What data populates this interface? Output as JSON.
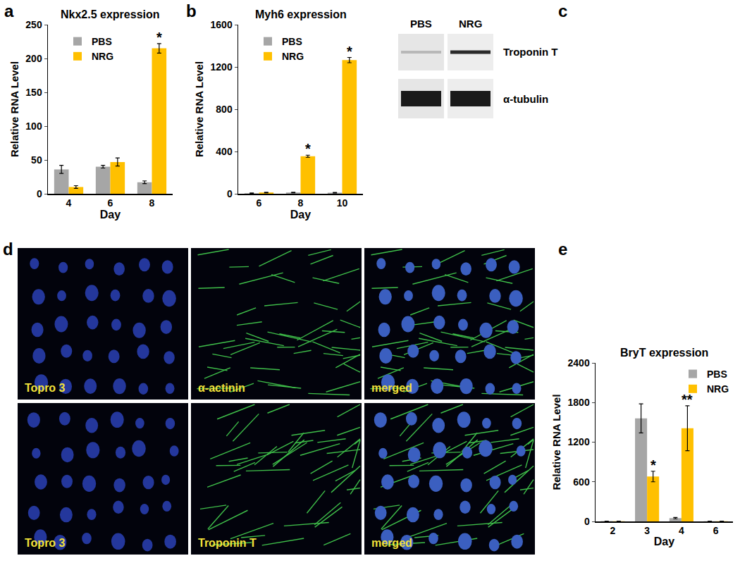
{
  "chart_data": [
    {
      "panel": "a",
      "type": "bar",
      "title": "Nkx2.5 expression",
      "x_label": "Day",
      "y_label": "Relative RNA Level",
      "categories": [
        "4",
        "6",
        "8"
      ],
      "series": [
        {
          "name": "PBS",
          "color": "#a6a6a6",
          "values": [
            36,
            40,
            17
          ],
          "errors": [
            6,
            2,
            2
          ]
        },
        {
          "name": "NRG",
          "color": "#ffc000",
          "values": [
            10,
            47,
            215
          ],
          "errors": [
            2,
            6,
            7
          ]
        }
      ],
      "annotations": [
        {
          "category": "8",
          "series": "NRG",
          "text": "*"
        }
      ],
      "ylim": [
        0,
        250
      ],
      "yticks": [
        0,
        50,
        100,
        150,
        200,
        250
      ],
      "grid": false,
      "legend": "upper left"
    },
    {
      "panel": "b",
      "type": "bar",
      "title": "Myh6 expression",
      "x_label": "Day",
      "y_label": "Relative RNA Level",
      "categories": [
        "6",
        "8",
        "10"
      ],
      "series": [
        {
          "name": "PBS",
          "color": "#a6a6a6",
          "values": [
            5,
            12,
            10
          ],
          "errors": [
            2,
            3,
            3
          ]
        },
        {
          "name": "NRG",
          "color": "#ffc000",
          "values": [
            12,
            355,
            1265
          ],
          "errors": [
            3,
            10,
            25
          ]
        }
      ],
      "annotations": [
        {
          "category": "8",
          "series": "NRG",
          "text": "*"
        },
        {
          "category": "10",
          "series": "NRG",
          "text": "*"
        }
      ],
      "ylim": [
        0,
        1600
      ],
      "yticks": [
        0,
        400,
        800,
        1200,
        1600
      ],
      "grid": false,
      "legend": "upper left"
    },
    {
      "panel": "e",
      "type": "bar",
      "title": "BryT expression",
      "x_label": "Day",
      "y_label": "Relative RNA Level",
      "categories": [
        "2",
        "3",
        "4",
        "6"
      ],
      "series": [
        {
          "name": "PBS",
          "color": "#a6a6a6",
          "values": [
            5,
            1560,
            50,
            3
          ],
          "errors": [
            0,
            220,
            10,
            0
          ]
        },
        {
          "name": "NRG",
          "color": "#ffc000",
          "values": [
            3,
            680,
            1410,
            3
          ],
          "errors": [
            0,
            80,
            340,
            0
          ]
        }
      ],
      "annotations": [
        {
          "category": "3",
          "series": "NRG",
          "text": "*"
        },
        {
          "category": "4",
          "series": "NRG",
          "text": "**"
        }
      ],
      "ylim": [
        0,
        2400
      ],
      "yticks": [
        0,
        600,
        1200,
        1800,
        2400
      ],
      "grid": false,
      "legend": "upper right"
    }
  ],
  "blot": {
    "panel": "c",
    "lanes": [
      "PBS",
      "NRG"
    ],
    "bands": [
      "Troponin T",
      "α-tubulin"
    ]
  },
  "micrographs": {
    "panel": "d",
    "rows": [
      [
        "Topro 3",
        "α-actinin",
        "merged"
      ],
      [
        "Topro 3",
        "Troponin T",
        "merged"
      ]
    ]
  }
}
